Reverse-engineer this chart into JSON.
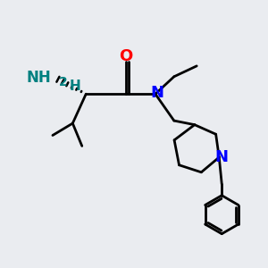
{
  "background_color": "#eaecf0",
  "bond_color": "#000000",
  "atom_colors": {
    "O": "#ff0000",
    "N": "#0000ff",
    "NH2": "#008080",
    "H": "#008080",
    "C": "#000000"
  },
  "figsize": [
    3.0,
    3.0
  ],
  "dpi": 100
}
